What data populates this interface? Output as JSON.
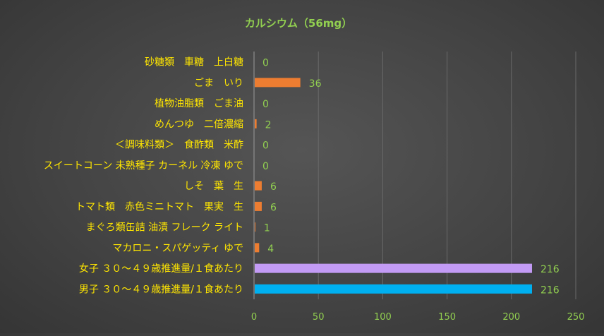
{
  "chart_data": {
    "type": "bar",
    "orientation": "horizontal",
    "title": "カルシウム（56mg）",
    "categories": [
      "砂糖類　車糖　上白糖",
      "ごま　いり",
      "植物油脂類　ごま油",
      "めんつゆ　二倍濃縮",
      "＜調味料類＞　食酢類　米酢",
      "スイートコーン 未熟種子 カーネル 冷凍 ゆで",
      "しそ　葉　生",
      "トマト類　赤色ミニトマト　果実　生",
      "まぐろ類缶詰 油漬 フレーク ライト",
      "マカロニ・スパゲッティ ゆで",
      "女子 ３０～４９歳推進量/１食あたり",
      "男子 ３０～４９歳推進量/１食あたり"
    ],
    "values": [
      0,
      36,
      0,
      2,
      0,
      0,
      6,
      6,
      1,
      4,
      216,
      216
    ],
    "value_labels": [
      "0",
      "36",
      "0",
      "2",
      "0",
      "0",
      "6",
      "6",
      "1",
      "4",
      "216",
      "216"
    ],
    "bar_colors": [
      "#ED7D31",
      "#ED7D31",
      "#ED7D31",
      "#ED7D31",
      "#ED7D31",
      "#ED7D31",
      "#ED7D31",
      "#ED7D31",
      "#ED7D31",
      "#ED7D31",
      "#C39BF5",
      "#00B0F0"
    ],
    "xlim": [
      0,
      250
    ],
    "xticks": [
      0,
      50,
      100,
      150,
      200,
      250
    ],
    "grid": true,
    "legend": "none"
  },
  "colors": {
    "title": "#92D050",
    "category_label": "#FFE600",
    "value_label": "#92D050",
    "tick_label": "#92D050",
    "grid": "#6A6A6A",
    "axis": "#9A9A9A"
  }
}
